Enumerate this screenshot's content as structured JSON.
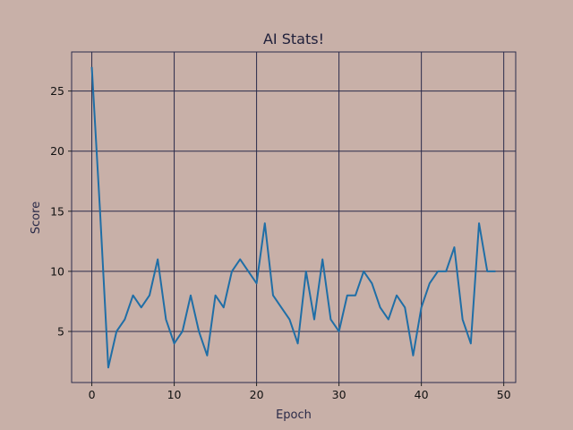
{
  "chart_data": {
    "type": "line",
    "title": "AI Stats!",
    "xlabel": "Epoch",
    "ylabel": "Score",
    "xlim": [
      -2.45,
      51.45
    ],
    "ylim": [
      0.75,
      28.25
    ],
    "xticks": [
      0,
      10,
      20,
      30,
      40,
      50
    ],
    "yticks": [
      5,
      10,
      15,
      20,
      25
    ],
    "grid": true,
    "colors": {
      "background": "#c8b0a8",
      "grid": "#2b2b4b",
      "line": "#1f6ea6",
      "frame": "#2b2b4b"
    },
    "series": [
      {
        "x": [
          0,
          1,
          2,
          3,
          4,
          5,
          6,
          7,
          8,
          9,
          10,
          11,
          12,
          13,
          14,
          15,
          16,
          17,
          18,
          19,
          20,
          21,
          22,
          23,
          24,
          25,
          26,
          27,
          28,
          29,
          30,
          31,
          32,
          33,
          34,
          35,
          36,
          37,
          38,
          39,
          40,
          41,
          42,
          43,
          44,
          45,
          46,
          47,
          48,
          49
        ],
        "values": [
          27,
          15,
          2,
          5,
          6,
          8,
          7,
          8,
          11,
          6,
          4,
          5,
          8,
          5,
          3,
          8,
          7,
          10,
          11,
          10,
          9,
          14,
          8,
          7,
          6,
          4,
          10,
          6,
          11,
          6,
          5,
          8,
          8,
          10,
          9,
          7,
          6,
          8,
          7,
          3,
          7,
          9,
          10,
          10,
          12,
          6,
          4,
          14,
          10,
          10
        ]
      }
    ]
  }
}
